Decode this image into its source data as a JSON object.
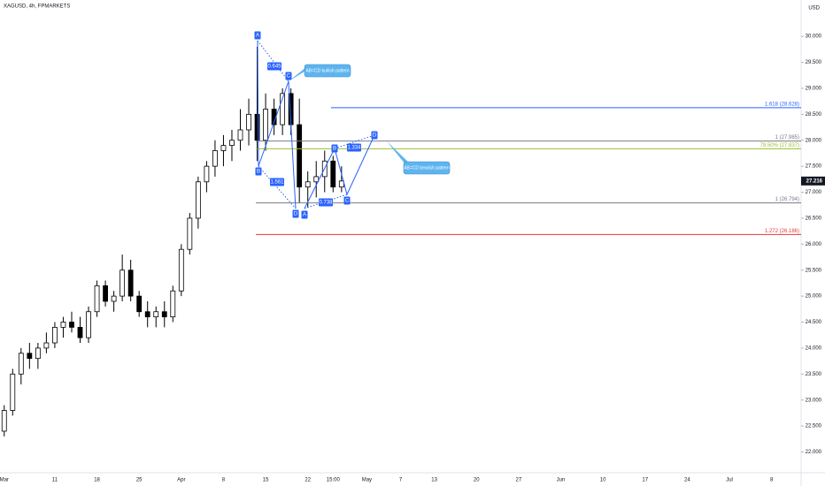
{
  "chart_data": {
    "type": "candlestick",
    "title": "XAGUSD, 4h, FPMARKETS",
    "currency": "USD",
    "categories": [
      "Mar",
      null,
      null,
      null,
      null,
      null,
      "11",
      null,
      null,
      null,
      null,
      "18",
      null,
      null,
      null,
      null,
      "25",
      null,
      null,
      null,
      null,
      "Apr",
      null,
      null,
      null,
      null,
      "8",
      null,
      null,
      null,
      null,
      "15",
      null,
      null,
      null,
      null,
      "22",
      null,
      null,
      "15:00",
      null,
      null,
      null,
      "May",
      null,
      null,
      null,
      "7",
      null,
      null,
      null,
      "13",
      null,
      null,
      null,
      null,
      "20",
      null,
      null,
      null,
      null,
      "27",
      null,
      null,
      null,
      null,
      "Jun",
      null,
      null,
      null,
      null,
      "10",
      null,
      null,
      null,
      null,
      "17",
      null,
      null,
      null,
      null,
      "24",
      null,
      null,
      null,
      null,
      "Jul",
      null,
      null,
      null,
      null,
      "8",
      null,
      null,
      null
    ],
    "open": [
      22.4,
      22.8,
      23.5,
      23.9,
      23.8,
      24.0,
      24.1,
      24.4,
      24.5,
      24.4,
      24.2,
      24.7,
      25.2,
      24.9,
      25.0,
      25.5,
      25.0,
      24.7,
      24.6,
      24.7,
      24.6,
      25.1,
      25.9,
      26.5,
      27.2,
      27.5,
      27.8,
      27.9,
      28.0,
      28.2,
      28.5,
      28.0,
      28.6,
      28.3,
      28.9,
      28.3,
      27.1,
      27.2,
      27.3,
      27.6,
      27.1,
      null,
      null,
      null,
      null,
      null,
      null,
      null,
      null,
      null,
      null,
      null,
      null,
      null,
      null,
      null,
      null,
      null,
      null,
      null,
      null,
      null,
      null,
      null,
      null,
      null,
      null,
      null,
      null,
      null,
      null,
      null,
      null,
      null,
      null,
      null,
      null,
      null,
      null,
      null,
      null,
      null,
      null,
      null,
      null,
      null,
      null,
      null,
      null,
      null,
      null,
      null,
      null,
      null,
      null
    ],
    "high": [
      22.9,
      23.6,
      24.0,
      24.1,
      24.1,
      24.3,
      24.5,
      24.6,
      24.7,
      24.6,
      24.8,
      25.3,
      25.3,
      25.1,
      25.8,
      25.7,
      25.1,
      24.9,
      24.8,
      24.9,
      25.2,
      26.0,
      26.6,
      27.3,
      27.6,
      28.0,
      28.1,
      28.2,
      28.6,
      28.8,
      29.8,
      28.9,
      28.8,
      29.0,
      29.0,
      28.8,
      27.4,
      27.6,
      27.8,
      27.7,
      27.5,
      null,
      null,
      null,
      null,
      null,
      null,
      null,
      null,
      null,
      null,
      null,
      null,
      null,
      null,
      null,
      null,
      null,
      null,
      null,
      null,
      null,
      null,
      null,
      null,
      null,
      null,
      null,
      null,
      null,
      null,
      null,
      null,
      null,
      null,
      null,
      null,
      null,
      null,
      null,
      null,
      null,
      null,
      null,
      null,
      null,
      null,
      null,
      null,
      null,
      null,
      null,
      null,
      null,
      null
    ],
    "low": [
      22.3,
      22.7,
      23.3,
      23.6,
      23.6,
      23.9,
      24.0,
      24.2,
      24.3,
      24.1,
      24.1,
      24.6,
      24.8,
      24.7,
      24.9,
      24.9,
      24.6,
      24.4,
      24.4,
      24.4,
      24.5,
      25.0,
      25.8,
      26.3,
      27.0,
      27.3,
      27.5,
      27.6,
      27.8,
      27.9,
      27.6,
      27.8,
      28.1,
      28.1,
      28.1,
      26.8,
      26.7,
      26.9,
      27.0,
      27.0,
      27.0,
      null,
      null,
      null,
      null,
      null,
      null,
      null,
      null,
      null,
      null,
      null,
      null,
      null,
      null,
      null,
      null,
      null,
      null,
      null,
      null,
      null,
      null,
      null,
      null,
      null,
      null,
      null,
      null,
      null,
      null,
      null,
      null,
      null,
      null,
      null,
      null,
      null,
      null,
      null,
      null,
      null,
      null,
      null,
      null,
      null,
      null,
      null,
      null,
      null,
      null,
      null,
      null,
      null,
      null
    ],
    "close": [
      22.8,
      23.5,
      23.9,
      23.8,
      24.0,
      24.1,
      24.4,
      24.5,
      24.4,
      24.2,
      24.7,
      25.2,
      24.9,
      25.0,
      25.5,
      25.0,
      24.7,
      24.6,
      24.7,
      24.6,
      25.1,
      25.9,
      26.5,
      27.2,
      27.5,
      27.8,
      27.9,
      28.0,
      28.2,
      28.5,
      28.0,
      28.6,
      28.3,
      28.9,
      28.3,
      27.1,
      27.2,
      27.3,
      27.6,
      27.1,
      27.216,
      null,
      null,
      null,
      null,
      null,
      null,
      null,
      null,
      null,
      null,
      null,
      null,
      null,
      null,
      null,
      null,
      null,
      null,
      null,
      null,
      null,
      null,
      null,
      null,
      null,
      null,
      null,
      null,
      null,
      null,
      null,
      null,
      null,
      null,
      null,
      null,
      null,
      null,
      null,
      null,
      null,
      null,
      null,
      null,
      null,
      null,
      null,
      null,
      null,
      null,
      null,
      null,
      null,
      null
    ],
    "ylim": [
      21.6,
      30.7
    ],
    "yticks": [
      {
        "value": 22,
        "label": "22.000"
      },
      {
        "value": 22.5,
        "label": "22.500"
      },
      {
        "value": 23,
        "label": "23.000"
      },
      {
        "value": 23.5,
        "label": "23.500"
      },
      {
        "value": 24,
        "label": "24.000"
      },
      {
        "value": 24.5,
        "label": "24.500"
      },
      {
        "value": 25,
        "label": "25.000"
      },
      {
        "value": 25.5,
        "label": "25.500"
      },
      {
        "value": 26,
        "label": "26.000"
      },
      {
        "value": 26.5,
        "label": "26.500"
      },
      {
        "value": 27,
        "label": "27.000"
      },
      {
        "value": 27.5,
        "label": "27.500"
      },
      {
        "value": 28,
        "label": "28.000"
      },
      {
        "value": 28.5,
        "label": "28.500"
      },
      {
        "value": 29,
        "label": "29.000"
      },
      {
        "value": 29.5,
        "label": "29.500"
      },
      {
        "value": 30,
        "label": "30.000"
      }
    ],
    "levels": [
      {
        "label": "1.618 (28.628)",
        "value": 28.628,
        "color": "#2962ff"
      },
      {
        "label": "1 (27.985)",
        "value": 27.985,
        "color": "#787b86"
      },
      {
        "label": "78.50% (27.837)",
        "value": 27.837,
        "color": "#9bbf2e"
      },
      {
        "label": "1 (26.794)",
        "value": 26.794,
        "color": "#787b86"
      },
      {
        "label": "1.272 (26.186)",
        "value": 26.186,
        "color": "#e53935"
      }
    ],
    "patterns": [
      {
        "points": [
          "A",
          "B",
          "C",
          "D"
        ],
        "ratios": [
          0.645,
          1.561
        ],
        "callout": "AB=CD bullish pattern"
      },
      {
        "points": [
          "A",
          "B",
          "C",
          "D"
        ],
        "ratios": [
          0.738,
          1.334
        ],
        "callout": "AB=CD bearish pattern"
      }
    ]
  }
}
